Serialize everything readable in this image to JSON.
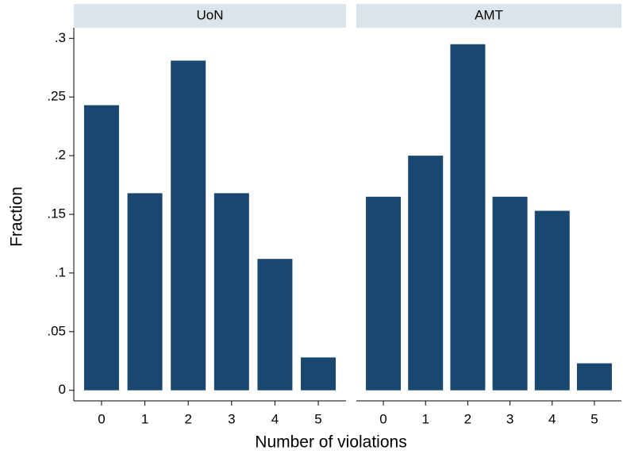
{
  "chart_data": [
    {
      "type": "bar",
      "title": "UoN",
      "xlabel": "Number of violations",
      "ylabel": "Fraction",
      "categories": [
        "0",
        "1",
        "2",
        "3",
        "4",
        "5"
      ],
      "values": [
        0.243,
        0.168,
        0.281,
        0.168,
        0.112,
        0.028
      ],
      "color": "#1a476f",
      "ylim": [
        -0.009,
        0.309
      ],
      "yticks": [
        0,
        {
          "value": 0.05,
          "label": ".05"
        },
        {
          "value": 0.1,
          "label": ".1"
        },
        {
          "value": 0.15,
          "label": ".15"
        },
        {
          "value": 0.2,
          "label": ".2"
        },
        {
          "value": 0.25,
          "label": ".25"
        },
        {
          "value": 0.3,
          "label": ".3"
        }
      ]
    },
    {
      "type": "bar",
      "title": "AMT",
      "categories": [
        "0",
        "1",
        "2",
        "3",
        "4",
        "5"
      ],
      "values": [
        0.165,
        0.2,
        0.295,
        0.165,
        0.153,
        0.023
      ],
      "color": "#1a476f",
      "ylim": [
        -0.009,
        0.309
      ]
    }
  ]
}
